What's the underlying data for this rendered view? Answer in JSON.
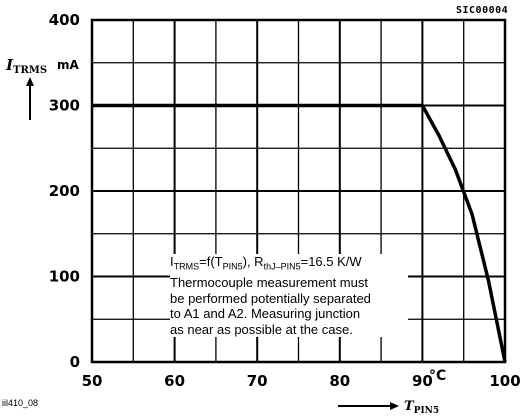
{
  "chart_data": {
    "type": "line",
    "title": "",
    "figure_code": "SIC00004",
    "figure_id": "iil410_08",
    "xlabel": "T",
    "xlabel_sub": "PIN5",
    "xunit": "°C",
    "ylabel": "I",
    "ylabel_sub": "TRMS",
    "yunit": "mA",
    "xlim": [
      50,
      100
    ],
    "ylim": [
      0,
      400
    ],
    "x_ticks": [
      "50",
      "60",
      "70",
      "80",
      "90",
      "100"
    ],
    "y_ticks": [
      "0",
      "100",
      "200",
      "300",
      "400"
    ],
    "grid": true,
    "series": [
      {
        "x": [
          50,
          90,
          92,
          94,
          96,
          98,
          100
        ],
        "y": [
          300,
          300,
          265,
          225,
          173,
          95,
          0
        ]
      }
    ],
    "annotation": {
      "lines": [
        "I_TRMS=f(T_PIN5), R_thJ-PIN5=16.5 K/W",
        "Thermocouple measurement must",
        "be performed potentially separated",
        "to A1 and A2. Measuring junction",
        "as near as possible at the case."
      ]
    }
  }
}
